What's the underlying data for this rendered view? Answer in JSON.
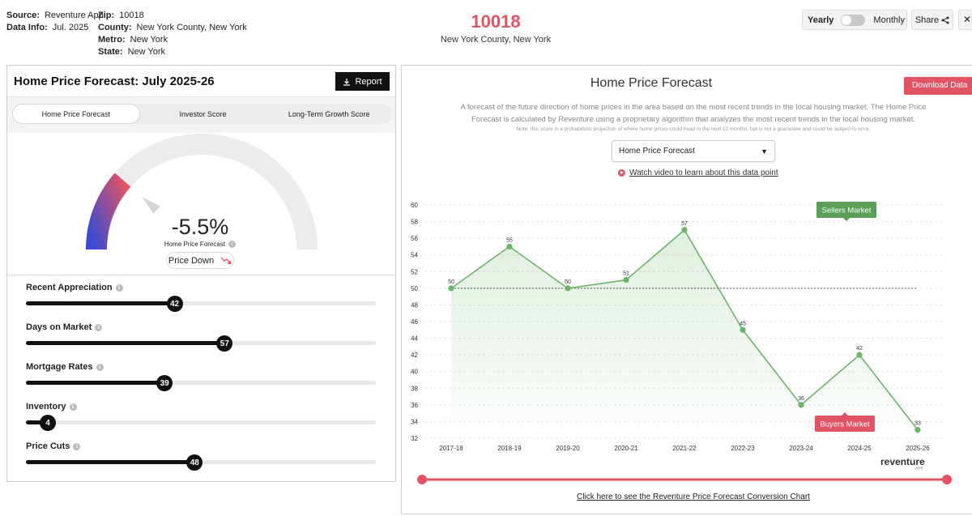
{
  "header": {
    "source_label": "Source:",
    "source_value": "Reventure App",
    "datainfo_label": "Data Info:",
    "datainfo_value": "Jul. 2025",
    "zip_label": "Zip:",
    "zip_value": "10018",
    "county_label": "County:",
    "county_value": "New York County, New York",
    "metro_label": "Metro:",
    "metro_value": "New York",
    "state_label": "State:",
    "state_value": "New York",
    "zip_big": "10018",
    "zip_sub": "New York County, New York",
    "toggle_yearly": "Yearly",
    "toggle_monthly": "Monthly",
    "share_label": "Share",
    "brand_color": "#e05465"
  },
  "left_panel": {
    "title": "Home Price Forecast: July 2025-26",
    "report_button": "Report",
    "tabs": [
      {
        "label": "Home Price Forecast",
        "active": true
      },
      {
        "label": "Investor Score",
        "active": false
      },
      {
        "label": "Long-Term Growth Score",
        "active": false
      }
    ],
    "gauge": {
      "value": "-5.5%",
      "label": "Home Price Forecast",
      "trend": "Price Down",
      "trend_icon": "trend-down-icon",
      "level": 0.23
    },
    "metrics": [
      {
        "label": "Recent Appreciation",
        "value": 42
      },
      {
        "label": "Days on Market",
        "value": 57
      },
      {
        "label": "Mortgage Rates",
        "value": 39
      },
      {
        "label": "Inventory",
        "value": 4
      },
      {
        "label": "Price Cuts",
        "value": 48
      }
    ]
  },
  "right_panel": {
    "title": "Home Price Forecast",
    "download_button": "Download Data",
    "description": "A forecast of the future direction of home prices in the area based on the most recent trends in the local housing market. The Home Price Forecast is calculated by Reventure using a proprietary algorithm that analyzes the most recent trends in the local housing market.",
    "note": "Note: this score is a probabilistic projection of where home prices could head in the next 12 months, but is not a guarantee and could be subject to error.",
    "select_value": "Home Price Forecast",
    "video_link": "Watch video to learn about this data point",
    "brand": "reventure",
    "brand_sub": "APP",
    "conversion_link": "Click here to see the Reventure Price Forecast Conversion Chart"
  },
  "chart_data": {
    "type": "area",
    "categories": [
      "2017-18",
      "2018-19",
      "2019-20",
      "2020-21",
      "2021-22",
      "2022-23",
      "2023-24",
      "2024-25",
      "2025-26"
    ],
    "values": [
      50,
      55,
      50,
      51,
      57,
      45,
      36,
      42,
      33
    ],
    "data_labels": [
      "50",
      "55",
      "50",
      "51",
      "57",
      "45",
      "36",
      "42",
      "33"
    ],
    "ylim": [
      32,
      60
    ],
    "yticks": [
      "32",
      "34",
      "36",
      "38",
      "40",
      "42",
      "44",
      "46",
      "48",
      "50",
      "52",
      "54",
      "56",
      "58",
      "60"
    ],
    "reference_line": 50,
    "annotations": [
      {
        "text": "Sellers Market",
        "color": "#5a9e58"
      },
      {
        "text": "Buyers Market",
        "color": "#e05465"
      }
    ],
    "line_color": "#6db36a",
    "grid": true
  }
}
